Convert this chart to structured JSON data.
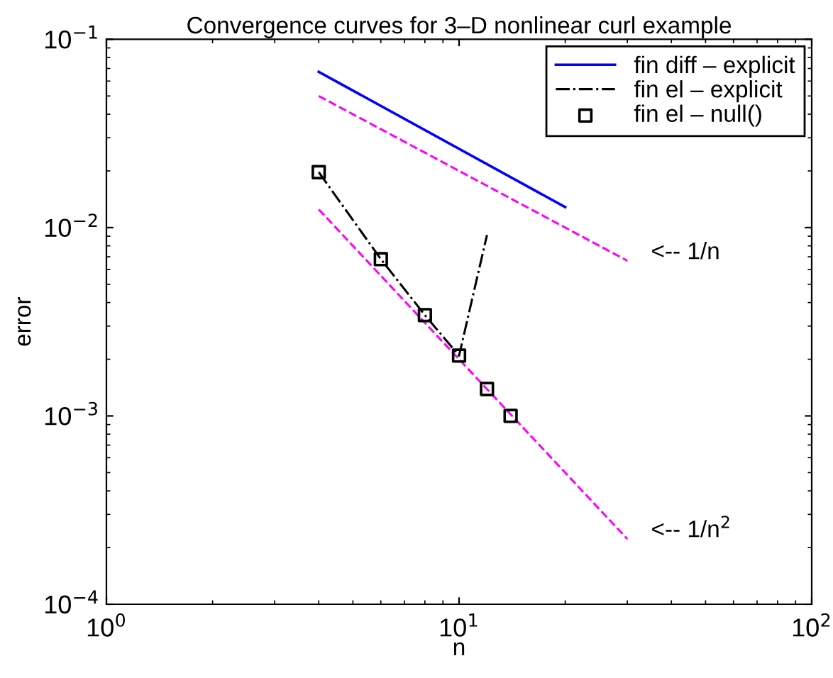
{
  "chart_data": {
    "type": "line",
    "title": "Convergence curves for 3–D nonlinear curl example",
    "xlabel": "n",
    "ylabel": "error",
    "log": "xy",
    "xlim": [
      1,
      100
    ],
    "ylim": [
      0.0001,
      0.1
    ],
    "xticks": [
      {
        "value": 1,
        "label": "10$^{0}$"
      },
      {
        "value": 10,
        "label": "10$^{1}$"
      },
      {
        "value": 100,
        "label": "10$^{2}$"
      }
    ],
    "yticks": [
      {
        "value": 0.0001,
        "label": "10$^{−4}$"
      },
      {
        "value": 0.001,
        "label": "10$^{−3}$"
      },
      {
        "value": 0.01,
        "label": "10$^{−2}$"
      },
      {
        "value": 0.1,
        "label": "10$^{−1}$"
      }
    ],
    "grid": false,
    "legend": "top right",
    "series": [
      {
        "name": "fin diff – explicit",
        "color": "#0000ff",
        "line_style": "solid",
        "marker": "none",
        "x": [
          4,
          20
        ],
        "values": [
          0.0672,
          0.01285
        ]
      },
      {
        "name": "fin el – explicit",
        "color": "#000000",
        "line_style": "dashdot",
        "marker": "none",
        "x": [
          4,
          6,
          8,
          10,
          12
        ],
        "values": [
          0.0197,
          0.0068,
          0.00343,
          0.00209,
          0.00914
        ]
      },
      {
        "name": "fin el – null()",
        "type": "scatter",
        "color": "#000000",
        "marker": "square",
        "x": [
          4,
          6,
          8,
          10,
          12,
          14
        ],
        "values": [
          0.0197,
          0.0068,
          0.00343,
          0.00209,
          0.00139,
          0.001
        ]
      },
      {
        "color": "#ff00ff",
        "line_style": "dashed",
        "marker": "none",
        "x": [
          4,
          30
        ],
        "values": [
          0.05,
          0.00667
        ]
      },
      {
        "color": "#ff00ff",
        "line_style": "dashed",
        "marker": "none",
        "x": [
          4,
          30
        ],
        "values": [
          0.0125,
          0.000222
        ]
      }
    ],
    "annotations": [
      "<-- 1/n",
      "<-- 1/n$^{2}$"
    ]
  }
}
